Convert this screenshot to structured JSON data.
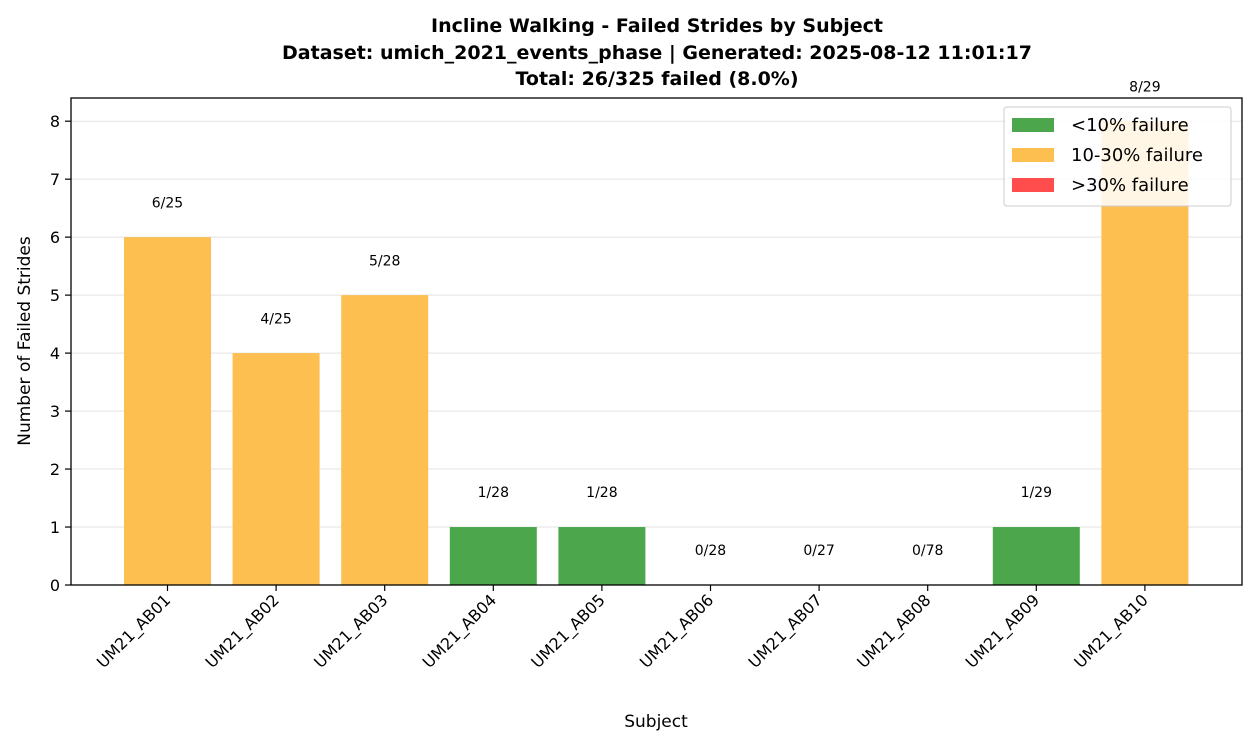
{
  "chart_data": {
    "type": "bar",
    "title_lines": [
      "Incline Walking - Failed Strides by Subject",
      "Dataset: umich_2021_events_phase | Generated: 2025-08-12 11:01:17",
      "Total: 26/325 failed (8.0%)"
    ],
    "xlabel": "Subject",
    "ylabel": "Number of Failed Strides",
    "ylim": [
      0,
      8.4
    ],
    "yticks": [
      0,
      1,
      2,
      3,
      4,
      5,
      6,
      7,
      8
    ],
    "grid": "horizontal",
    "legend_position": "top-right",
    "categories": [
      "UM21_AB01",
      "UM21_AB02",
      "UM21_AB03",
      "UM21_AB04",
      "UM21_AB05",
      "UM21_AB06",
      "UM21_AB07",
      "UM21_AB08",
      "UM21_AB09",
      "UM21_AB10"
    ],
    "values": [
      6,
      4,
      5,
      1,
      1,
      0,
      0,
      0,
      1,
      8
    ],
    "totals": [
      25,
      25,
      28,
      28,
      28,
      28,
      27,
      78,
      29,
      29
    ],
    "data_labels": [
      "6/25",
      "4/25",
      "5/28",
      "1/28",
      "1/28",
      "0/28",
      "0/27",
      "0/78",
      "1/29",
      "8/29"
    ],
    "bar_groups": [
      "10-30% failure",
      "10-30% failure",
      "10-30% failure",
      "<10% failure",
      "<10% failure",
      "<10% failure",
      "<10% failure",
      "<10% failure",
      "<10% failure",
      "10-30% failure"
    ],
    "legend": [
      {
        "label": "<10% failure",
        "color": "#4ca64c"
      },
      {
        "label": "10-30% failure",
        "color": "#fdbf4f"
      },
      {
        "label": ">30% failure",
        "color": "#ff4d4d"
      }
    ]
  }
}
